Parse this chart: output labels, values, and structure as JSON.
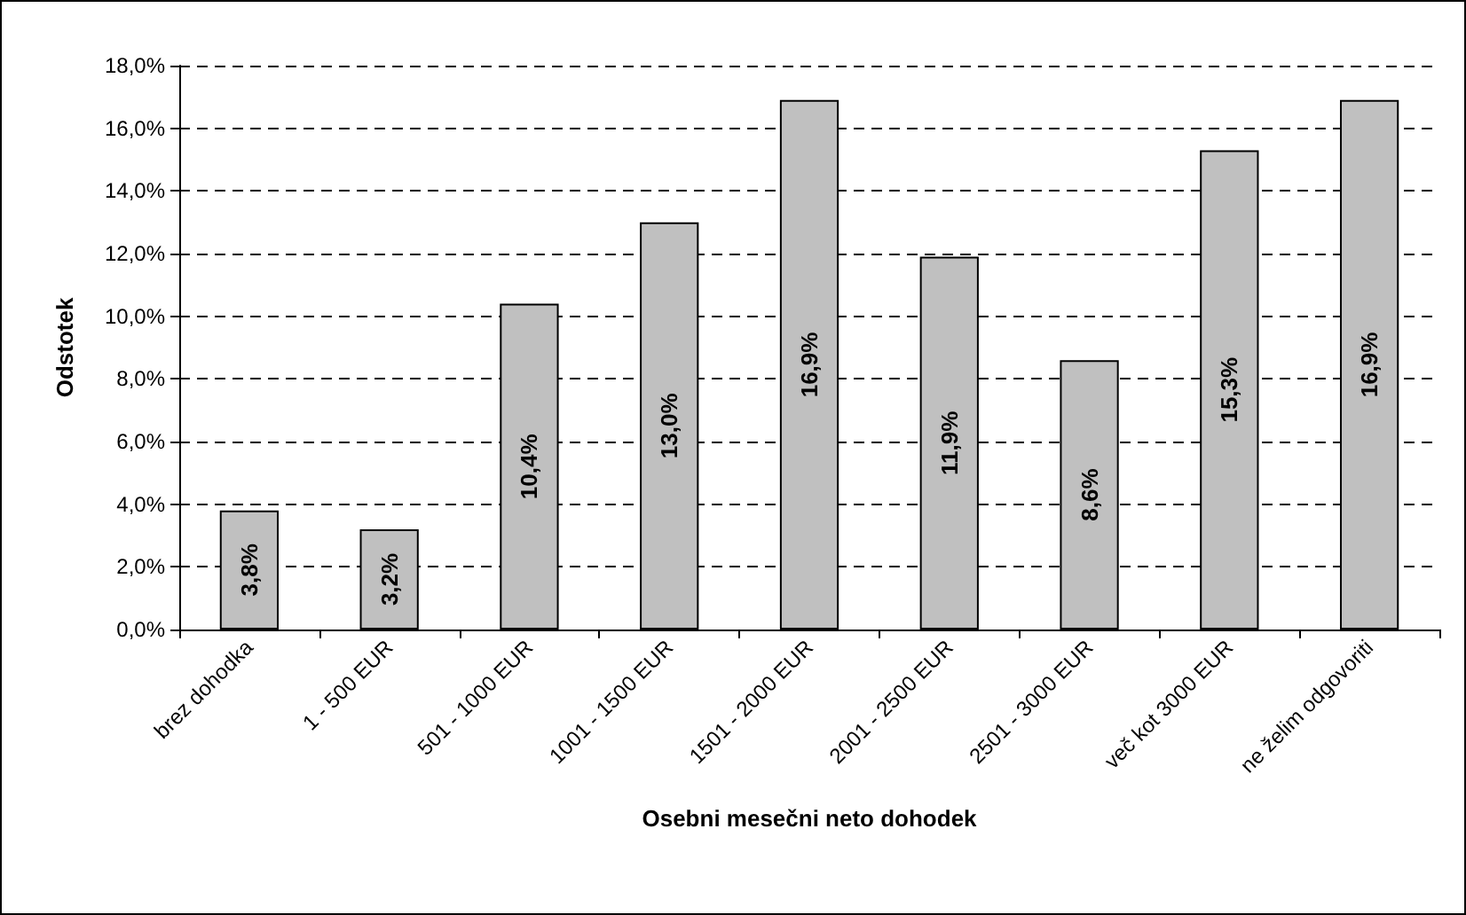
{
  "chart_data": {
    "type": "bar",
    "xlabel": "Osebni mesečni neto dohodek",
    "ylabel": "Odstotek",
    "categories": [
      "brez dohodka",
      "1 - 500 EUR",
      "501 - 1000 EUR",
      "1001 - 1500 EUR",
      "1501 - 2000 EUR",
      "2001 - 2500 EUR",
      "2501 - 3000 EUR",
      "več kot 3000 EUR",
      "ne želim odgovoriti"
    ],
    "values": [
      3.8,
      3.2,
      10.4,
      13.0,
      16.9,
      11.9,
      8.6,
      15.3,
      16.9
    ],
    "value_labels": [
      "3,8%",
      "3,2%",
      "10,4%",
      "13,0%",
      "16,9%",
      "11,9%",
      "8,6%",
      "15,3%",
      "16,9%"
    ],
    "color": "#c0c0c0",
    "ylim": [
      0,
      18
    ],
    "yticks": [
      {
        "value": 0,
        "label": "0,0%"
      },
      {
        "value": 2,
        "label": "2,0%"
      },
      {
        "value": 4,
        "label": "4,0%"
      },
      {
        "value": 6,
        "label": "6,0%"
      },
      {
        "value": 8,
        "label": "8,0%"
      },
      {
        "value": 10,
        "label": "10,0%"
      },
      {
        "value": 12,
        "label": "12,0%"
      },
      {
        "value": 14,
        "label": "14,0%"
      },
      {
        "value": 16,
        "label": "16,0%"
      },
      {
        "value": 18,
        "label": "18,0%"
      }
    ],
    "grid": "y"
  }
}
